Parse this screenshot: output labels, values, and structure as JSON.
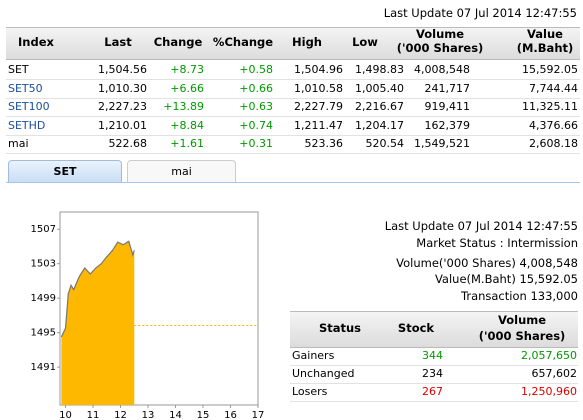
{
  "header": {
    "last_update": "Last Update 07 Jul 2014 12:47:55"
  },
  "index_table": {
    "columns": [
      [
        "Index"
      ],
      [
        "Last"
      ],
      [
        "Change"
      ],
      [
        "%Change"
      ],
      [
        "High"
      ],
      [
        "Low"
      ],
      [
        "Volume",
        "('000 Shares)"
      ],
      [
        "Value",
        "(M.Baht)"
      ]
    ],
    "rows": [
      [
        "SET",
        "1,504.56",
        "+8.73",
        "+0.58",
        "1,504.96",
        "1,498.83",
        "4,008,548",
        "15,592.05"
      ],
      [
        "SET50",
        "1,010.30",
        "+6.66",
        "+0.66",
        "1,010.58",
        "1,005.40",
        "241,717",
        "7,744.44"
      ],
      [
        "SET100",
        "2,227.23",
        "+13.89",
        "+0.63",
        "2,227.79",
        "2,216.67",
        "919,411",
        "11,325.11"
      ],
      [
        "SETHD",
        "1,210.01",
        "+8.84",
        "+0.74",
        "1,211.47",
        "1,204.17",
        "162,379",
        "4,376.66"
      ],
      [
        "mai",
        "522.68",
        "+1.61",
        "+0.31",
        "523.36",
        "520.54",
        "1,549,521",
        "2,608.18"
      ]
    ]
  },
  "tabs": [
    "SET",
    "mai"
  ],
  "market": {
    "last_update": "Last Update 07 Jul 2014 12:47:55",
    "status": "Market Status : Intermission",
    "volume": "Volume('000 Shares) 4,008,548",
    "value": "Value(M.Baht) 15,592.05",
    "transaction": "Transaction 133,000"
  },
  "status_table": {
    "columns": [
      [
        "Status"
      ],
      [
        "Stock"
      ],
      [
        "Volume",
        "('000 Shares)"
      ]
    ],
    "rows": [
      [
        "Gainers",
        "344",
        "2,057,650"
      ],
      [
        "Unchanged",
        "234",
        "657,602"
      ],
      [
        "Losers",
        "267",
        "1,250,960"
      ]
    ]
  },
  "chart_data": {
    "type": "area",
    "x": [
      9.85,
      10.0,
      10.1,
      10.2,
      10.3,
      10.5,
      10.7,
      10.9,
      11.1,
      11.3,
      11.5,
      11.7,
      11.9,
      12.1,
      12.3,
      12.45,
      12.5
    ],
    "values": [
      1494.5,
      1495.5,
      1499.5,
      1500.5,
      1500.0,
      1501.5,
      1502.5,
      1501.8,
      1502.5,
      1503.0,
      1503.8,
      1504.5,
      1505.5,
      1505.2,
      1505.6,
      1504.0,
      1504.56
    ],
    "color": "#ffb800",
    "line_color": "#777777",
    "reference_line": 1495.83,
    "reference_color": "#ffb800",
    "xlim": [
      9.8,
      17
    ],
    "xticks": [
      10,
      11,
      12,
      13,
      14,
      15,
      16,
      17
    ],
    "ylim": [
      1486.6,
      1509
    ],
    "yticks": [
      1491,
      1495,
      1499,
      1503,
      1507
    ]
  }
}
